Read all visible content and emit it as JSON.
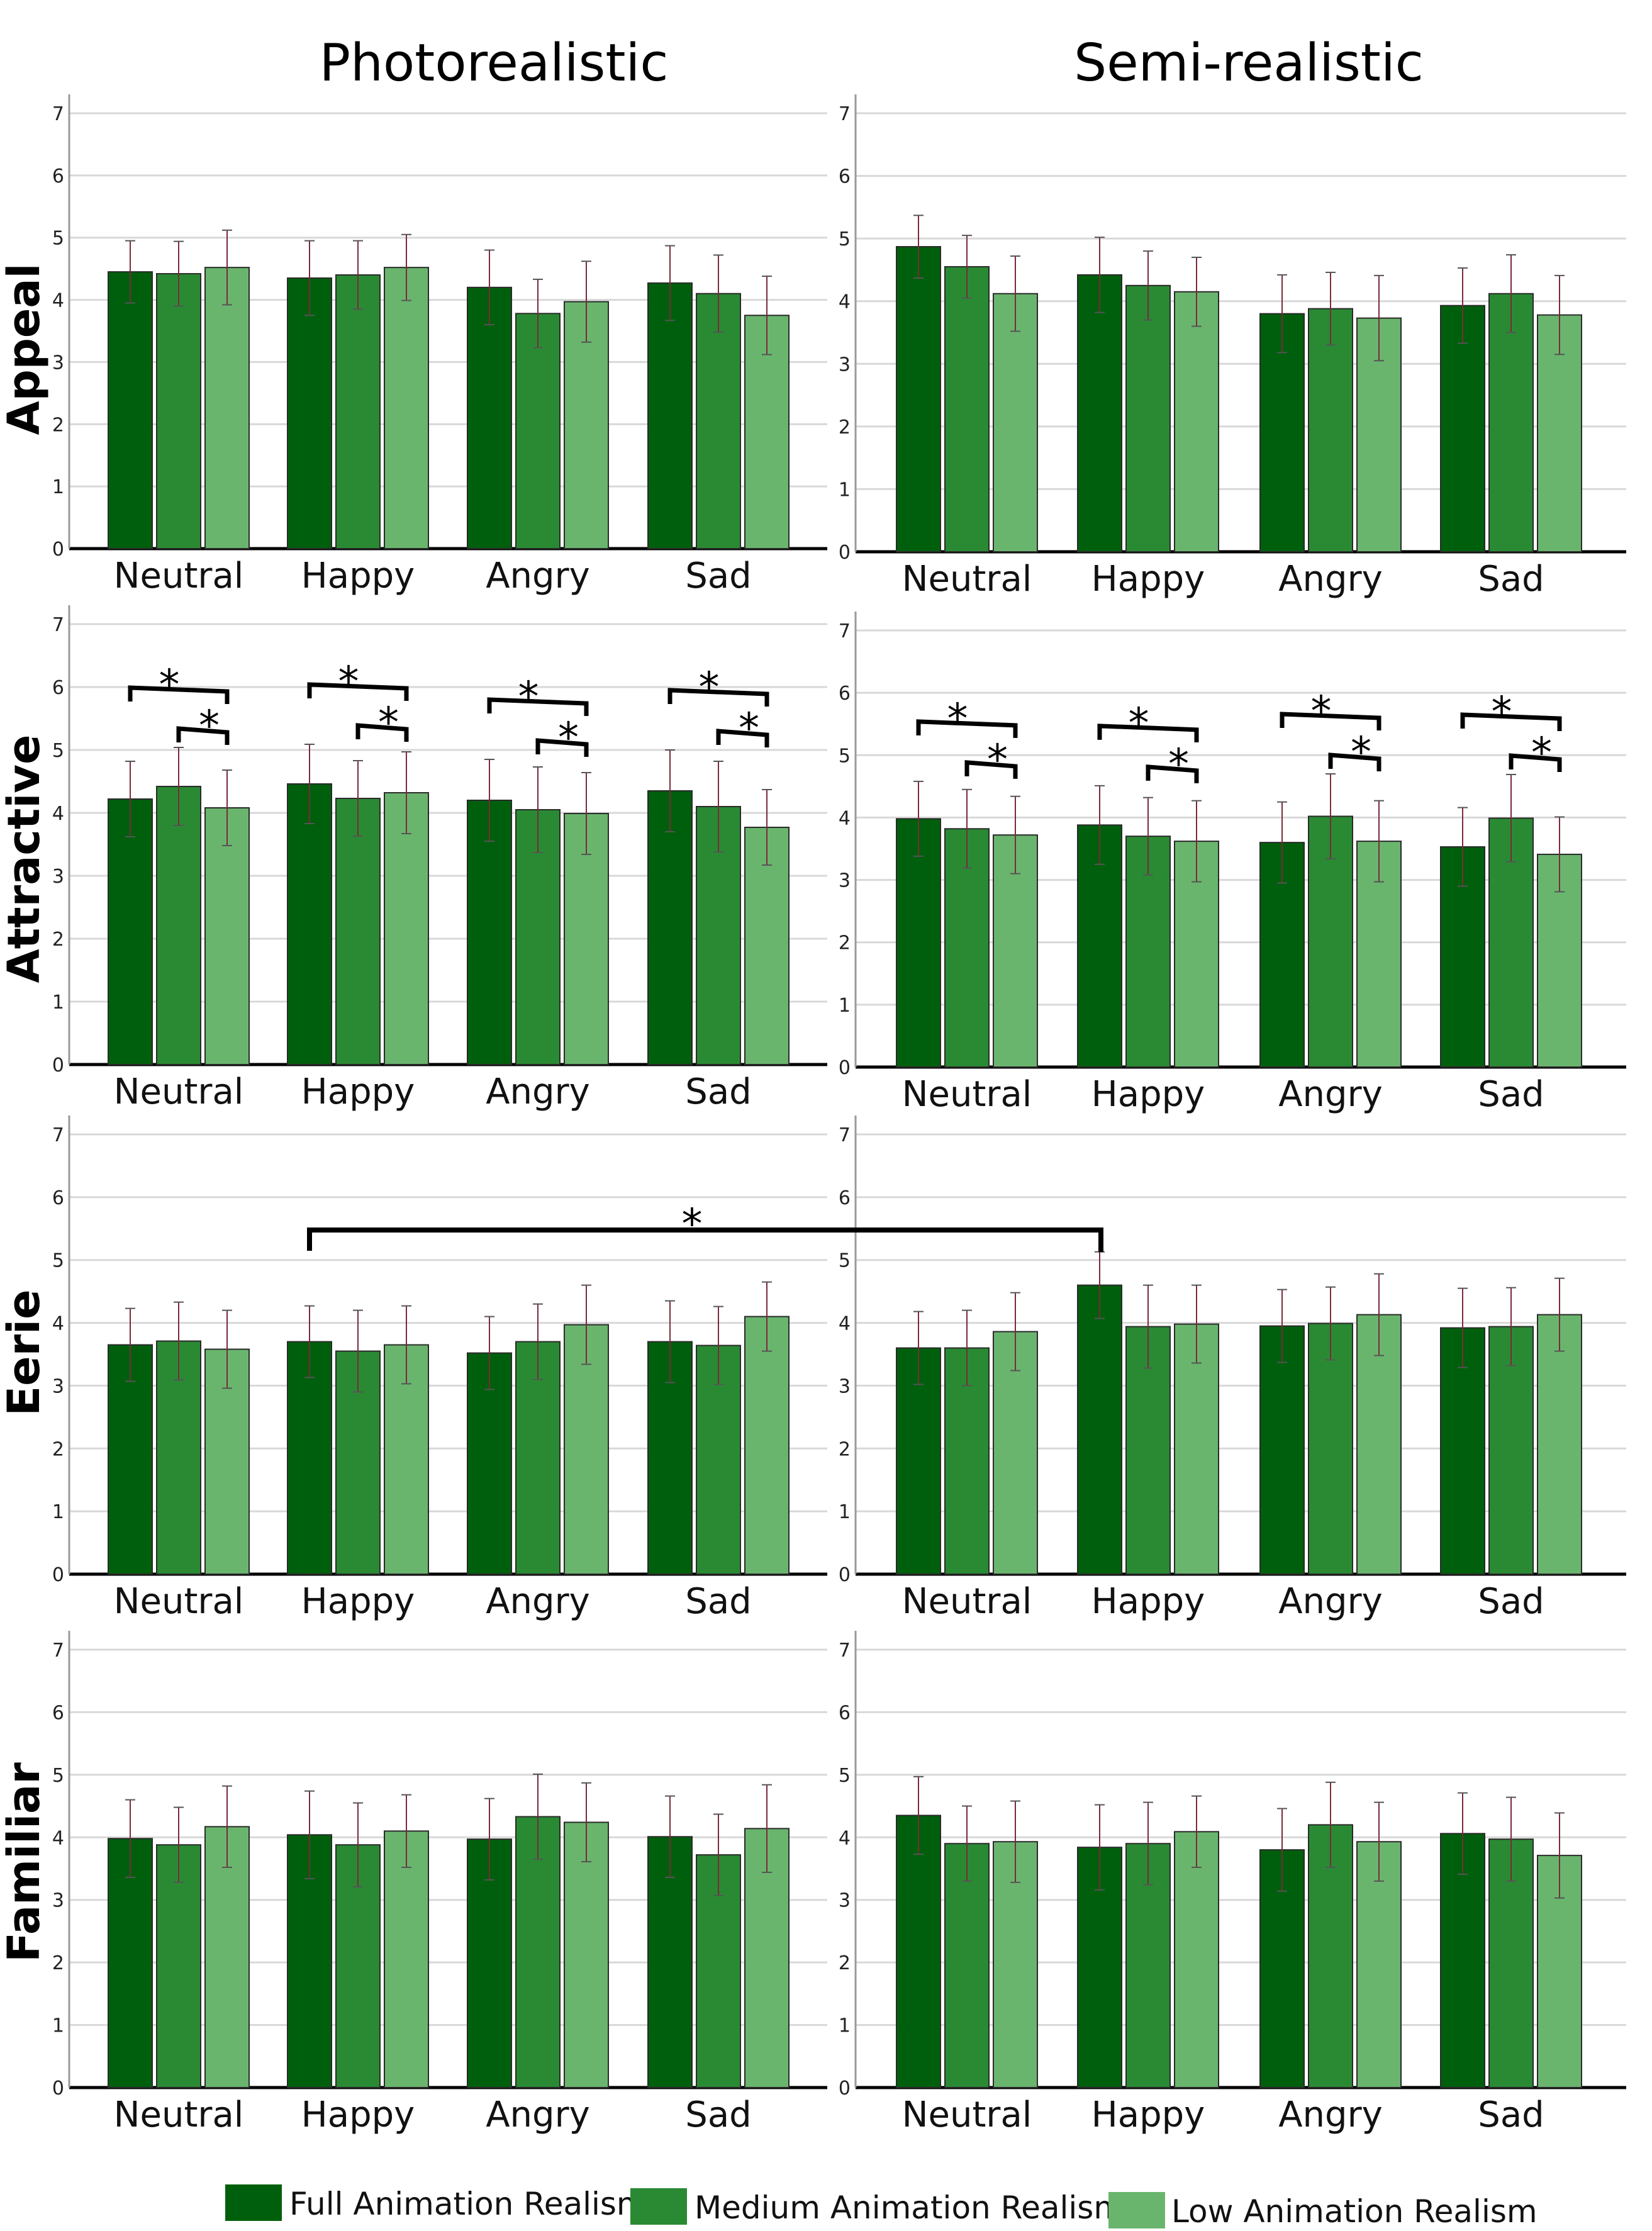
{
  "titles": {
    "left": "Photorealistic",
    "right": "Semi-realistic"
  },
  "legend": [
    {
      "label": "Full Animation Realism",
      "color": "#005f0c"
    },
    {
      "label": "Medium Animation Realism",
      "color": "#2a8a33"
    },
    {
      "label": "Low Animation Realism",
      "color": "#6ab56e"
    }
  ],
  "chart_data": [
    {
      "type": "bar",
      "title": "Photorealistic",
      "ylabel": "Appeal",
      "categories": [
        "Neutral",
        "Happy",
        "Angry",
        "Sad"
      ],
      "ylim": [
        0,
        7
      ],
      "yticks": [
        "0",
        "1",
        "2",
        "3",
        "4",
        "5",
        "6",
        "7"
      ],
      "grid": true,
      "series": [
        {
          "name": "Full Animation Realism",
          "values": [
            4.45,
            4.35,
            4.2,
            4.27
          ],
          "errors": [
            0.5,
            0.6,
            0.6,
            0.6
          ]
        },
        {
          "name": "Medium Animation Realism",
          "values": [
            4.42,
            4.4,
            3.78,
            4.1
          ],
          "errors": [
            0.52,
            0.55,
            0.55,
            0.62
          ]
        },
        {
          "name": "Low Animation Realism",
          "values": [
            4.52,
            4.52,
            3.97,
            3.75
          ],
          "errors": [
            0.6,
            0.53,
            0.65,
            0.63
          ]
        }
      ],
      "significance": []
    },
    {
      "type": "bar",
      "title": "Semi-realistic",
      "ylabel": "Appeal",
      "categories": [
        "Neutral",
        "Happy",
        "Angry",
        "Sad"
      ],
      "ylim": [
        0,
        7
      ],
      "yticks": [
        "0",
        "1",
        "2",
        "3",
        "4",
        "5",
        "6",
        "7"
      ],
      "grid": true,
      "series": [
        {
          "name": "Full Animation Realism",
          "values": [
            4.87,
            4.42,
            3.8,
            3.93
          ],
          "errors": [
            0.5,
            0.6,
            0.62,
            0.6
          ]
        },
        {
          "name": "Medium Animation Realism",
          "values": [
            4.55,
            4.25,
            3.88,
            4.12
          ],
          "errors": [
            0.5,
            0.55,
            0.58,
            0.62
          ]
        },
        {
          "name": "Low Animation Realism",
          "values": [
            4.12,
            4.15,
            3.73,
            3.78
          ],
          "errors": [
            0.6,
            0.55,
            0.68,
            0.63
          ]
        }
      ],
      "significance": []
    },
    {
      "type": "bar",
      "title": "Photorealistic",
      "ylabel": "Attractive",
      "categories": [
        "Neutral",
        "Happy",
        "Angry",
        "Sad"
      ],
      "ylim": [
        0,
        7
      ],
      "yticks": [
        "0",
        "1",
        "2",
        "3",
        "4",
        "5",
        "6",
        "7"
      ],
      "grid": true,
      "series": [
        {
          "name": "Full Animation Realism",
          "values": [
            4.22,
            4.46,
            4.2,
            4.35
          ],
          "errors": [
            0.6,
            0.63,
            0.65,
            0.65
          ]
        },
        {
          "name": "Medium Animation Realism",
          "values": [
            4.42,
            4.23,
            4.05,
            4.1
          ],
          "errors": [
            0.62,
            0.6,
            0.68,
            0.72
          ]
        },
        {
          "name": "Low Animation Realism",
          "values": [
            4.08,
            4.32,
            3.99,
            3.77
          ],
          "errors": [
            0.6,
            0.65,
            0.65,
            0.6
          ]
        }
      ],
      "significance": [
        {
          "category": "Neutral",
          "from": 0,
          "to": 2,
          "label": "*"
        },
        {
          "category": "Neutral",
          "from": 1,
          "to": 2,
          "label": "*"
        },
        {
          "category": "Happy",
          "from": 0,
          "to": 2,
          "label": "*"
        },
        {
          "category": "Happy",
          "from": 1,
          "to": 2,
          "label": "*"
        },
        {
          "category": "Angry",
          "from": 0,
          "to": 2,
          "label": "*"
        },
        {
          "category": "Angry",
          "from": 1,
          "to": 2,
          "label": "*"
        },
        {
          "category": "Sad",
          "from": 0,
          "to": 2,
          "label": "*"
        },
        {
          "category": "Sad",
          "from": 1,
          "to": 2,
          "label": "*"
        }
      ]
    },
    {
      "type": "bar",
      "title": "Semi-realistic",
      "ylabel": "Attractive",
      "categories": [
        "Neutral",
        "Happy",
        "Angry",
        "Sad"
      ],
      "ylim": [
        0,
        7
      ],
      "yticks": [
        "0",
        "1",
        "2",
        "3",
        "4",
        "5",
        "6",
        "7"
      ],
      "grid": true,
      "series": [
        {
          "name": "Full Animation Realism",
          "values": [
            3.98,
            3.88,
            3.6,
            3.53
          ],
          "errors": [
            0.6,
            0.63,
            0.65,
            0.63
          ]
        },
        {
          "name": "Medium Animation Realism",
          "values": [
            3.82,
            3.7,
            4.02,
            3.99
          ],
          "errors": [
            0.63,
            0.62,
            0.68,
            0.7
          ]
        },
        {
          "name": "Low Animation Realism",
          "values": [
            3.72,
            3.62,
            3.62,
            3.41
          ],
          "errors": [
            0.62,
            0.65,
            0.65,
            0.6
          ]
        }
      ],
      "significance": [
        {
          "category": "Neutral",
          "from": 0,
          "to": 2,
          "label": "*"
        },
        {
          "category": "Neutral",
          "from": 1,
          "to": 2,
          "label": "*"
        },
        {
          "category": "Happy",
          "from": 0,
          "to": 2,
          "label": "*"
        },
        {
          "category": "Happy",
          "from": 1,
          "to": 2,
          "label": "*"
        },
        {
          "category": "Angry",
          "from": 0,
          "to": 2,
          "label": "*"
        },
        {
          "category": "Angry",
          "from": 1,
          "to": 2,
          "label": "*"
        },
        {
          "category": "Sad",
          "from": 0,
          "to": 2,
          "label": "*"
        },
        {
          "category": "Sad",
          "from": 1,
          "to": 2,
          "label": "*"
        }
      ]
    },
    {
      "type": "bar",
      "title": "Photorealistic",
      "ylabel": "Eerie",
      "categories": [
        "Neutral",
        "Happy",
        "Angry",
        "Sad"
      ],
      "ylim": [
        0,
        7
      ],
      "yticks": [
        "0",
        "1",
        "2",
        "3",
        "4",
        "5",
        "6",
        "7"
      ],
      "grid": true,
      "series": [
        {
          "name": "Full Animation Realism",
          "values": [
            3.65,
            3.7,
            3.52,
            3.7
          ],
          "errors": [
            0.58,
            0.57,
            0.58,
            0.65
          ]
        },
        {
          "name": "Medium Animation Realism",
          "values": [
            3.71,
            3.55,
            3.7,
            3.64
          ],
          "errors": [
            0.62,
            0.65,
            0.6,
            0.62
          ]
        },
        {
          "name": "Low Animation Realism",
          "values": [
            3.58,
            3.65,
            3.97,
            4.1
          ],
          "errors": [
            0.62,
            0.62,
            0.63,
            0.55
          ]
        }
      ],
      "significance": []
    },
    {
      "type": "bar",
      "title": "Semi-realistic",
      "ylabel": "Eerie",
      "categories": [
        "Neutral",
        "Happy",
        "Angry",
        "Sad"
      ],
      "ylim": [
        0,
        7
      ],
      "yticks": [
        "0",
        "1",
        "2",
        "3",
        "4",
        "5",
        "6",
        "7"
      ],
      "grid": true,
      "series": [
        {
          "name": "Full Animation Realism",
          "values": [
            3.6,
            4.6,
            3.95,
            3.92
          ],
          "errors": [
            0.58,
            0.53,
            0.58,
            0.63
          ]
        },
        {
          "name": "Medium Animation Realism",
          "values": [
            3.6,
            3.94,
            3.99,
            3.94
          ],
          "errors": [
            0.6,
            0.66,
            0.58,
            0.62
          ]
        },
        {
          "name": "Low Animation Realism",
          "values": [
            3.86,
            3.98,
            4.13,
            4.13
          ],
          "errors": [
            0.62,
            0.62,
            0.65,
            0.58
          ]
        }
      ],
      "significance": []
    },
    {
      "type": "bar",
      "title": "Photorealistic",
      "ylabel": "Familiar",
      "categories": [
        "Neutral",
        "Happy",
        "Angry",
        "Sad"
      ],
      "ylim": [
        0,
        7
      ],
      "yticks": [
        "0",
        "1",
        "2",
        "3",
        "4",
        "5",
        "6",
        "7"
      ],
      "grid": true,
      "series": [
        {
          "name": "Full Animation Realism",
          "values": [
            3.98,
            4.04,
            3.97,
            4.01
          ],
          "errors": [
            0.62,
            0.7,
            0.65,
            0.65
          ]
        },
        {
          "name": "Medium Animation Realism",
          "values": [
            3.88,
            3.88,
            4.33,
            3.72
          ],
          "errors": [
            0.6,
            0.67,
            0.68,
            0.65
          ]
        },
        {
          "name": "Low Animation Realism",
          "values": [
            4.17,
            4.1,
            4.24,
            4.14
          ],
          "errors": [
            0.65,
            0.58,
            0.63,
            0.7
          ]
        }
      ],
      "significance": []
    },
    {
      "type": "bar",
      "title": "Semi-realistic",
      "ylabel": "Familiar",
      "categories": [
        "Neutral",
        "Happy",
        "Angry",
        "Sad"
      ],
      "ylim": [
        0,
        7
      ],
      "yticks": [
        "0",
        "1",
        "2",
        "3",
        "4",
        "5",
        "6",
        "7"
      ],
      "grid": true,
      "series": [
        {
          "name": "Full Animation Realism",
          "values": [
            4.35,
            3.84,
            3.8,
            4.06
          ],
          "errors": [
            0.62,
            0.68,
            0.66,
            0.65
          ]
        },
        {
          "name": "Medium Animation Realism",
          "values": [
            3.9,
            3.9,
            4.2,
            3.97
          ],
          "errors": [
            0.6,
            0.66,
            0.68,
            0.67
          ]
        },
        {
          "name": "Low Animation Realism",
          "values": [
            3.93,
            4.09,
            3.93,
            3.71
          ],
          "errors": [
            0.65,
            0.57,
            0.63,
            0.68
          ]
        }
      ],
      "significance": []
    }
  ],
  "cross_significance": {
    "label": "*",
    "from_chart": "Photorealistic",
    "from_category": "Happy",
    "to_chart": "Semi-realistic",
    "to_category": "Happy",
    "measure": "Eerie"
  }
}
